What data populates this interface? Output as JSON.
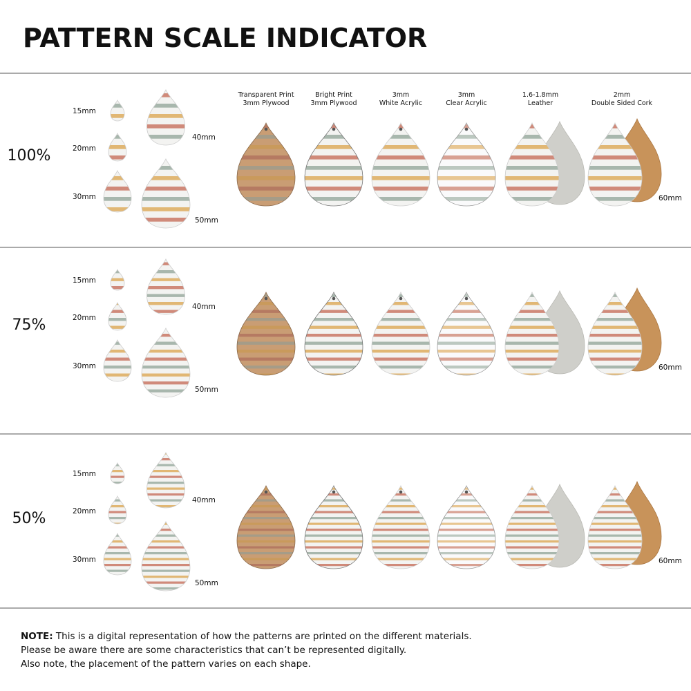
{
  "title": "PATTERN SCALE INDICATOR",
  "materials": [
    {
      "line1": "Transparent Print",
      "line2": "3mm Plywood"
    },
    {
      "line1": "Bright Print",
      "line2": "3mm Plywood"
    },
    {
      "line1": "3mm",
      "line2": "White Acrylic"
    },
    {
      "line1": "3mm",
      "line2": "Clear Acrylic"
    },
    {
      "line1": "1.6-1.8mm",
      "line2": "Leather"
    },
    {
      "line1": "2mm",
      "line2": "Double Sided Cork"
    }
  ],
  "rows": [
    {
      "scale": "100%",
      "sizes": [
        "15mm",
        "20mm",
        "30mm",
        "40mm",
        "50mm"
      ],
      "large_size": "60mm"
    },
    {
      "scale": "75%",
      "sizes": [
        "15mm",
        "20mm",
        "30mm",
        "40mm",
        "50mm"
      ],
      "large_size": "60mm"
    },
    {
      "scale": "50%",
      "sizes": [
        "15mm",
        "20mm",
        "30mm",
        "40mm",
        "50mm"
      ],
      "large_size": "60mm"
    }
  ],
  "note": {
    "label": "NOTE:",
    "lines": [
      "This is a digital representation of how the patterns are printed on the different materials.",
      "Please be aware there are some characteristics that can’t be represented digitally.",
      "Also note, the placement of the pattern varies on each shape."
    ]
  }
}
